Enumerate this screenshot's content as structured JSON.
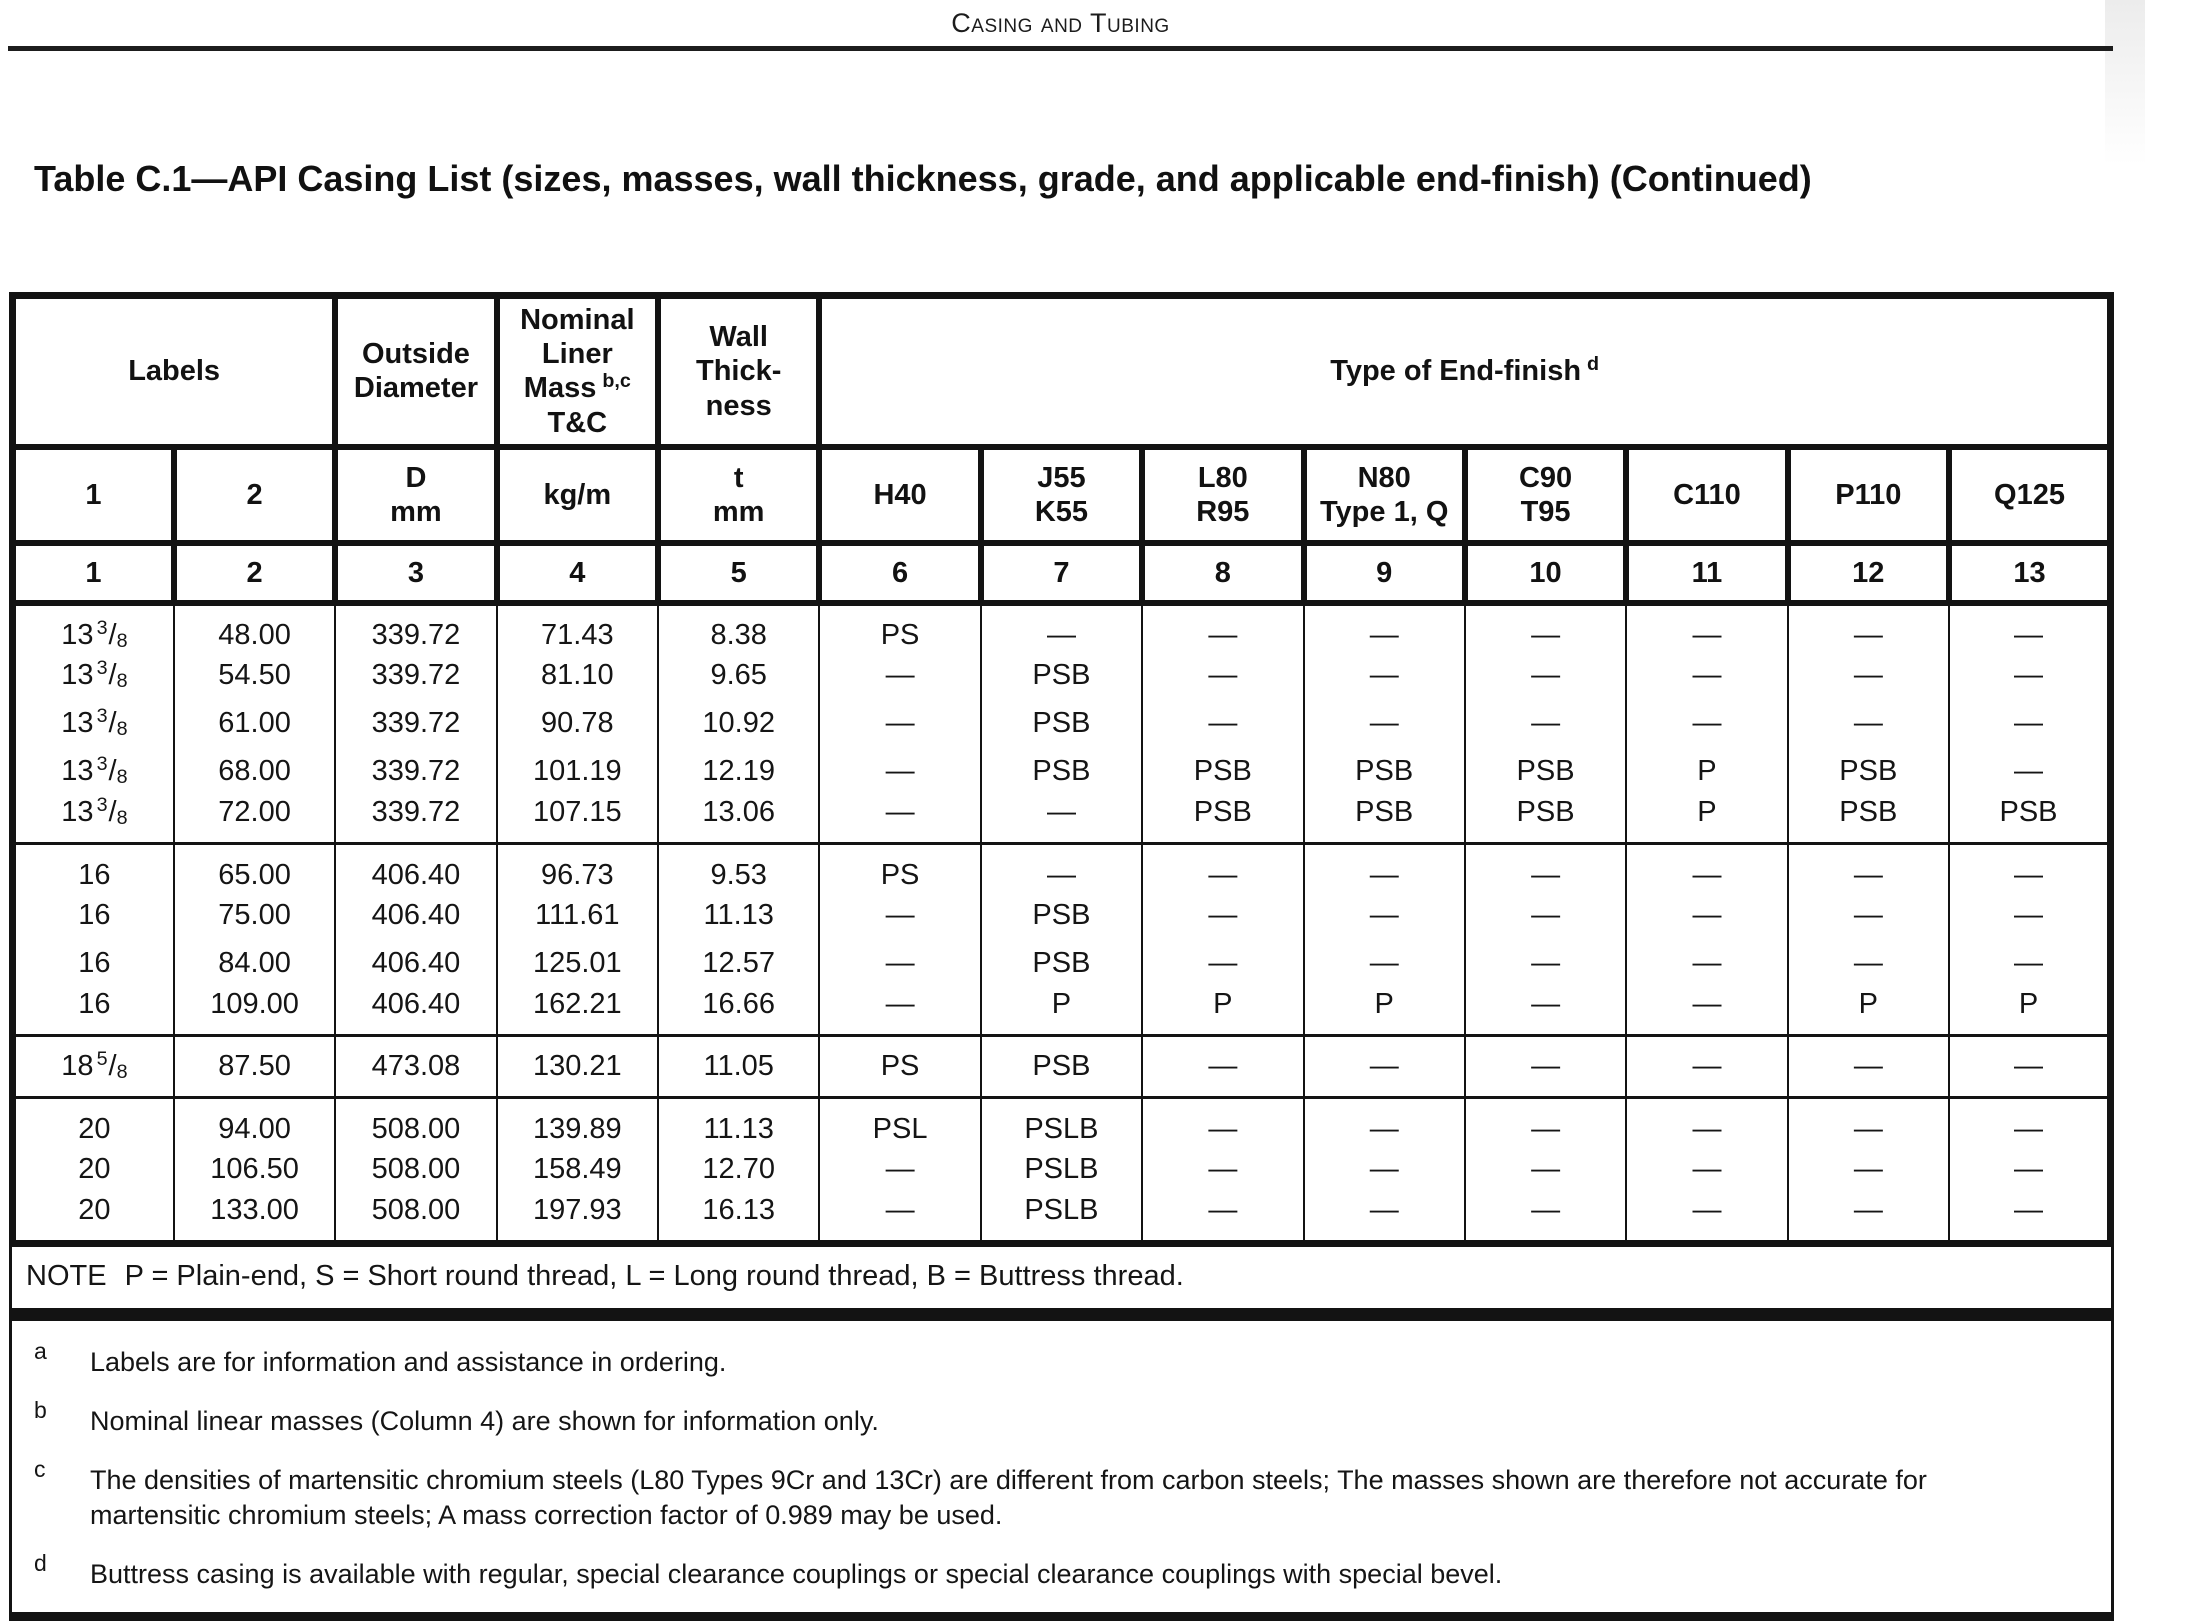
{
  "page_header": "Casing and Tubing",
  "table_title": "Table C.1—API Casing List (sizes, masses, wall thickness, grade, and applicable end-finish) (Continued)",
  "header": {
    "labels": "Labels",
    "outside_diameter": "Outside\nDiameter",
    "nominal_mass_main": "Nominal\nLiner\nMass",
    "nominal_mass_sup": "b,c",
    "nominal_mass_tail": "T&C",
    "wall_thickness": "Wall\nThick-\nness",
    "end_finish_main": "Type of End-finish",
    "end_finish_sup": "d",
    "col_headers": [
      "1",
      "2",
      "D\nmm",
      "kg/m",
      "t\nmm",
      "H40",
      "J55\nK55",
      "L80\nR95",
      "N80\nType 1, Q",
      "C90\nT95",
      "C110",
      "P110",
      "Q125"
    ],
    "col_numbers": [
      "1",
      "2",
      "3",
      "4",
      "5",
      "6",
      "7",
      "8",
      "9",
      "10",
      "11",
      "12",
      "13"
    ]
  },
  "groups": [
    {
      "rows": [
        {
          "size": {
            "whole": "13",
            "num": "3",
            "den": "8"
          },
          "values": [
            "48.00",
            "339.72",
            "71.43",
            "8.38",
            "PS",
            "—",
            "—",
            "—",
            "—",
            "—",
            "—",
            "—"
          ]
        },
        {
          "size": {
            "whole": "13",
            "num": "3",
            "den": "8"
          },
          "values": [
            "54.50",
            "339.72",
            "81.10",
            "9.65",
            "—",
            "PSB",
            "—",
            "—",
            "—",
            "—",
            "—",
            "—"
          ]
        },
        {
          "size": {
            "whole": "13",
            "num": "3",
            "den": "8"
          },
          "values": [
            "61.00",
            "339.72",
            "90.78",
            "10.92",
            "—",
            "PSB",
            "—",
            "—",
            "—",
            "—",
            "—",
            "—"
          ]
        },
        {
          "size": {
            "whole": "13",
            "num": "3",
            "den": "8"
          },
          "values": [
            "68.00",
            "339.72",
            "101.19",
            "12.19",
            "—",
            "PSB",
            "PSB",
            "PSB",
            "PSB",
            "P",
            "PSB",
            "—"
          ]
        },
        {
          "size": {
            "whole": "13",
            "num": "3",
            "den": "8"
          },
          "values": [
            "72.00",
            "339.72",
            "107.15",
            "13.06",
            "—",
            "—",
            "PSB",
            "PSB",
            "PSB",
            "P",
            "PSB",
            "PSB"
          ]
        }
      ]
    },
    {
      "rows": [
        {
          "size": {
            "whole": "16"
          },
          "values": [
            "65.00",
            "406.40",
            "96.73",
            "9.53",
            "PS",
            "—",
            "—",
            "—",
            "—",
            "—",
            "—",
            "—"
          ]
        },
        {
          "size": {
            "whole": "16"
          },
          "values": [
            "75.00",
            "406.40",
            "111.61",
            "11.13",
            "—",
            "PSB",
            "—",
            "—",
            "—",
            "—",
            "—",
            "—"
          ]
        },
        {
          "size": {
            "whole": "16"
          },
          "values": [
            "84.00",
            "406.40",
            "125.01",
            "12.57",
            "—",
            "PSB",
            "—",
            "—",
            "—",
            "—",
            "—",
            "—"
          ]
        },
        {
          "size": {
            "whole": "16"
          },
          "values": [
            "109.00",
            "406.40",
            "162.21",
            "16.66",
            "—",
            "P",
            "P",
            "P",
            "—",
            "—",
            "P",
            "P"
          ]
        }
      ]
    },
    {
      "rows": [
        {
          "size": {
            "whole": "18",
            "num": "5",
            "den": "8"
          },
          "values": [
            "87.50",
            "473.08",
            "130.21",
            "11.05",
            "PS",
            "PSB",
            "—",
            "—",
            "—",
            "—",
            "—",
            "—"
          ]
        }
      ]
    },
    {
      "rows": [
        {
          "size": {
            "whole": "20"
          },
          "values": [
            "94.00",
            "508.00",
            "139.89",
            "11.13",
            "PSL",
            "PSLB",
            "—",
            "—",
            "—",
            "—",
            "—",
            "—"
          ]
        },
        {
          "size": {
            "whole": "20"
          },
          "values": [
            "106.50",
            "508.00",
            "158.49",
            "12.70",
            "—",
            "PSLB",
            "—",
            "—",
            "—",
            "—",
            "—",
            "—"
          ]
        },
        {
          "size": {
            "whole": "20"
          },
          "values": [
            "133.00",
            "508.00",
            "197.93",
            "16.13",
            "—",
            "PSLB",
            "—",
            "—",
            "—",
            "—",
            "—",
            "—"
          ]
        }
      ]
    }
  ],
  "note_label": "NOTE",
  "note_text": "P = Plain-end, S = Short round thread, L = Long round thread, B = Buttress thread.",
  "footnotes": [
    {
      "mark": "a",
      "text": "Labels are for information and assistance in ordering."
    },
    {
      "mark": "b",
      "text": "Nominal linear masses (Column 4) are shown for information only."
    },
    {
      "mark": "c",
      "text": "The densities of martensitic chromium steels (L80 Types 9Cr and 13Cr) are different from carbon steels; The masses shown are therefore not accurate for martensitic chromium steels; A mass correction factor of 0.989 may be used."
    },
    {
      "mark": "d",
      "text": "Buttress casing is available with regular, special clearance couplings or special clearance couplings with special bevel."
    }
  ]
}
